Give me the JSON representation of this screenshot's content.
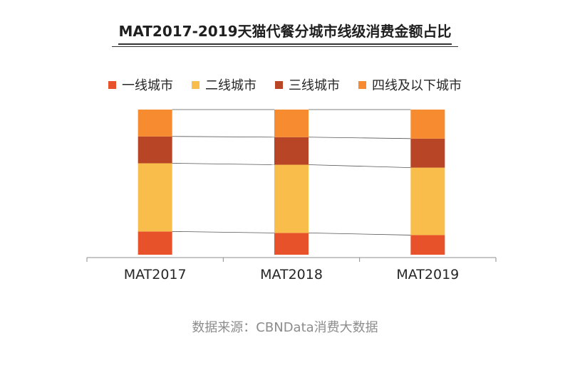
{
  "chart_data": {
    "type": "bar",
    "stacked": true,
    "normalized_percent": true,
    "title": "MAT2017-2019天猫代餐分城市线级消费金额占比",
    "categories": [
      "MAT2017",
      "MAT2018",
      "MAT2019"
    ],
    "series": [
      {
        "name": "一线城市",
        "color": "#e8522a",
        "values": [
          16,
          15,
          13.5
        ]
      },
      {
        "name": "二线城市",
        "color": "#f8bd4b",
        "values": [
          47,
          47,
          46.5
        ]
      },
      {
        "name": "三线城市",
        "color": "#b84526",
        "values": [
          18.5,
          19,
          20
        ]
      },
      {
        "name": "四线及以下城市",
        "color": "#f78b2f",
        "values": [
          18.5,
          19,
          20
        ]
      }
    ],
    "ylim": [
      0,
      100
    ],
    "grid": false,
    "legend_position": "top",
    "connector_lines": true
  },
  "source": "数据来源：CBNData消费大数据"
}
